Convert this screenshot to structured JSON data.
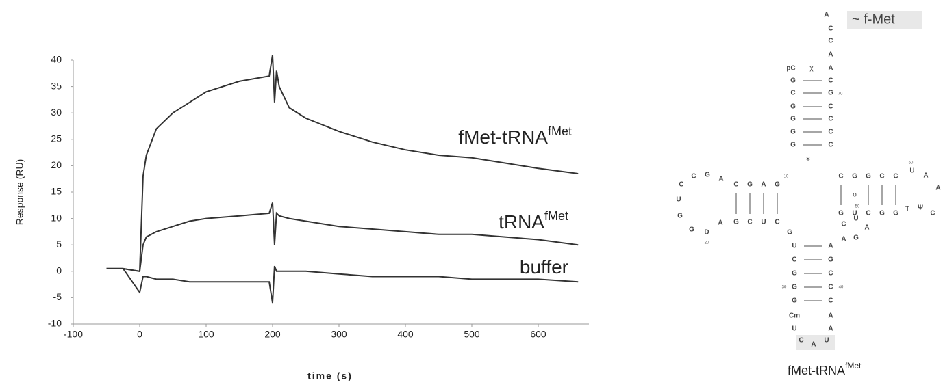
{
  "chart_data": {
    "type": "line",
    "x_label": "time (s)",
    "y_label": "Response (RU)",
    "xlim": [
      -100,
      675
    ],
    "xticks": [
      -100,
      0,
      100,
      200,
      300,
      400,
      500,
      600
    ],
    "ylim": [
      -10,
      40
    ],
    "yticks": [
      -10,
      -5,
      0,
      5,
      10,
      15,
      20,
      25,
      30,
      35,
      40
    ],
    "x": [
      -50,
      -25,
      0,
      5,
      10,
      25,
      50,
      75,
      100,
      150,
      195,
      200,
      203,
      206,
      210,
      225,
      250,
      300,
      350,
      400,
      450,
      500,
      550,
      600,
      660
    ],
    "series": [
      {
        "name": "fMet-tRNA",
        "name_superscript": "fMet",
        "color": "#333333",
        "values": [
          0.5,
          0.5,
          0,
          18,
          22,
          27,
          30,
          32,
          34,
          36,
          37,
          41,
          32,
          38,
          35,
          31,
          29,
          26.5,
          24.5,
          23,
          22,
          21.5,
          20.5,
          19.5,
          18.5
        ]
      },
      {
        "name": "tRNA",
        "name_superscript": "fMet",
        "color": "#333333",
        "values": [
          0.5,
          0.5,
          0,
          5,
          6.5,
          7.5,
          8.5,
          9.5,
          10,
          10.5,
          11,
          13,
          5,
          11,
          10.5,
          10,
          9.5,
          8.5,
          8,
          7.5,
          7,
          7,
          6.5,
          6,
          5
        ]
      },
      {
        "name": "buffer",
        "color": "#333333",
        "values": [
          0.5,
          0.5,
          -4,
          -1,
          -1,
          -1.5,
          -1.5,
          -2,
          -2,
          -2,
          -2,
          -6,
          1,
          0,
          0,
          0,
          0,
          -0.5,
          -1,
          -1,
          -1,
          -1.5,
          -1.5,
          -1.5,
          -2
        ]
      }
    ]
  },
  "diagram": {
    "end_label": "~ f-Met",
    "caption": "fMet-tRNA",
    "caption_superscript": "fMet",
    "mismatch": "χ",
    "wobble": "o",
    "nucleotides": [
      "A",
      "C",
      "C",
      "A",
      "A",
      "C",
      "G",
      "C",
      "C",
      "C",
      "C",
      "pC",
      "G",
      "C",
      "G",
      "G",
      "G",
      "G",
      "s",
      "C",
      "G",
      "A",
      "G",
      "G",
      "C",
      "U",
      "C",
      "A",
      "G",
      "C",
      "C",
      "U",
      "G",
      "G",
      "D",
      "A",
      "G",
      "C",
      "G",
      "G",
      "C",
      "C",
      "G",
      "U",
      "C",
      "G",
      "G",
      "U",
      "A",
      "A",
      "C",
      "Ψ",
      "T",
      "C",
      "U",
      "A",
      "G",
      "A",
      "U",
      "C",
      "G",
      "G",
      "G",
      "A",
      "G",
      "C",
      "C",
      "C",
      "Cm",
      "U",
      "C",
      "A",
      "U",
      "A",
      "A"
    ],
    "numbers": [
      "70",
      "10",
      "20",
      "30",
      "40",
      "60",
      "50"
    ]
  }
}
